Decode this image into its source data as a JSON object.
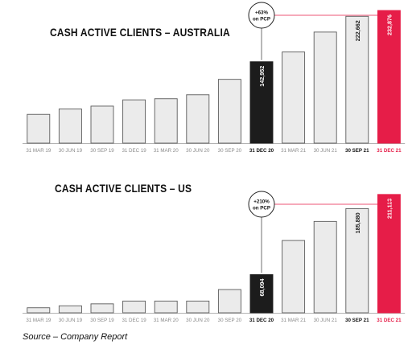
{
  "chart_data": [
    {
      "type": "bar",
      "title": "CASH ACTIVE CLIENTS – AUSTRALIA",
      "categories": [
        "31 MAR 19",
        "30 JUN 19",
        "30 SEP 19",
        "31 DEC 19",
        "31 MAR 20",
        "30 JUN 20",
        "30 SEP 20",
        "31 DEC 20",
        "31 MAR 21",
        "30 JUN 21",
        "30 SEP 21",
        "31 DEC 21"
      ],
      "values": [
        50500,
        60000,
        65000,
        76000,
        78000,
        85000,
        112000,
        142952,
        160000,
        195000,
        222662,
        232876
      ],
      "value_labels": [
        "",
        "",
        "",
        "",
        "",
        "",
        "",
        "142,952",
        "",
        "",
        "222,662",
        "232,876"
      ],
      "emphasized_categories": [
        "31 DEC 20",
        "30 SEP 21",
        "31 DEC 21"
      ],
      "bar_styles": [
        "default",
        "default",
        "default",
        "default",
        "default",
        "default",
        "default",
        "dark",
        "default",
        "default",
        "default",
        "accent"
      ],
      "ylim": [
        0,
        240000
      ],
      "grid": false,
      "callout": {
        "line1": "+63%",
        "line2": "on PCP"
      },
      "colors": {
        "default_fill": "#ebebeb",
        "default_stroke": "#5a5a5a",
        "dark": "#1c1c1c",
        "accent": "#e61d48",
        "callout_line": "#e61d48"
      }
    },
    {
      "type": "bar",
      "title": "CASH ACTIVE CLIENTS – US",
      "categories": [
        "31 MAR 19",
        "30 JUN 19",
        "30 SEP 19",
        "31 DEC 19",
        "31 MAR 20",
        "30 JUN 20",
        "30 SEP 20",
        "31 DEC 20",
        "31 MAR 21",
        "30 JUN 21",
        "30 SEP 21",
        "31 DEC 21"
      ],
      "values": [
        9000,
        12500,
        16000,
        21000,
        21000,
        21000,
        41500,
        68094,
        129000,
        163000,
        185880,
        211113
      ],
      "value_labels": [
        "",
        "",
        "",
        "",
        "",
        "",
        "",
        "68,094",
        "",
        "",
        "185,880",
        "211,113"
      ],
      "emphasized_categories": [
        "31 DEC 20",
        "30 SEP 21",
        "31 DEC 21"
      ],
      "bar_styles": [
        "default",
        "default",
        "default",
        "default",
        "default",
        "default",
        "default",
        "dark",
        "default",
        "default",
        "default",
        "accent"
      ],
      "ylim": [
        0,
        218000
      ],
      "grid": false,
      "callout": {
        "line1": "+210%",
        "line2": "on PCP"
      },
      "colors": {
        "default_fill": "#ebebeb",
        "default_stroke": "#5a5a5a",
        "dark": "#1c1c1c",
        "accent": "#e61d48",
        "callout_line": "#e61d48"
      }
    }
  ],
  "footer": {
    "source": "Source – Company Report"
  }
}
